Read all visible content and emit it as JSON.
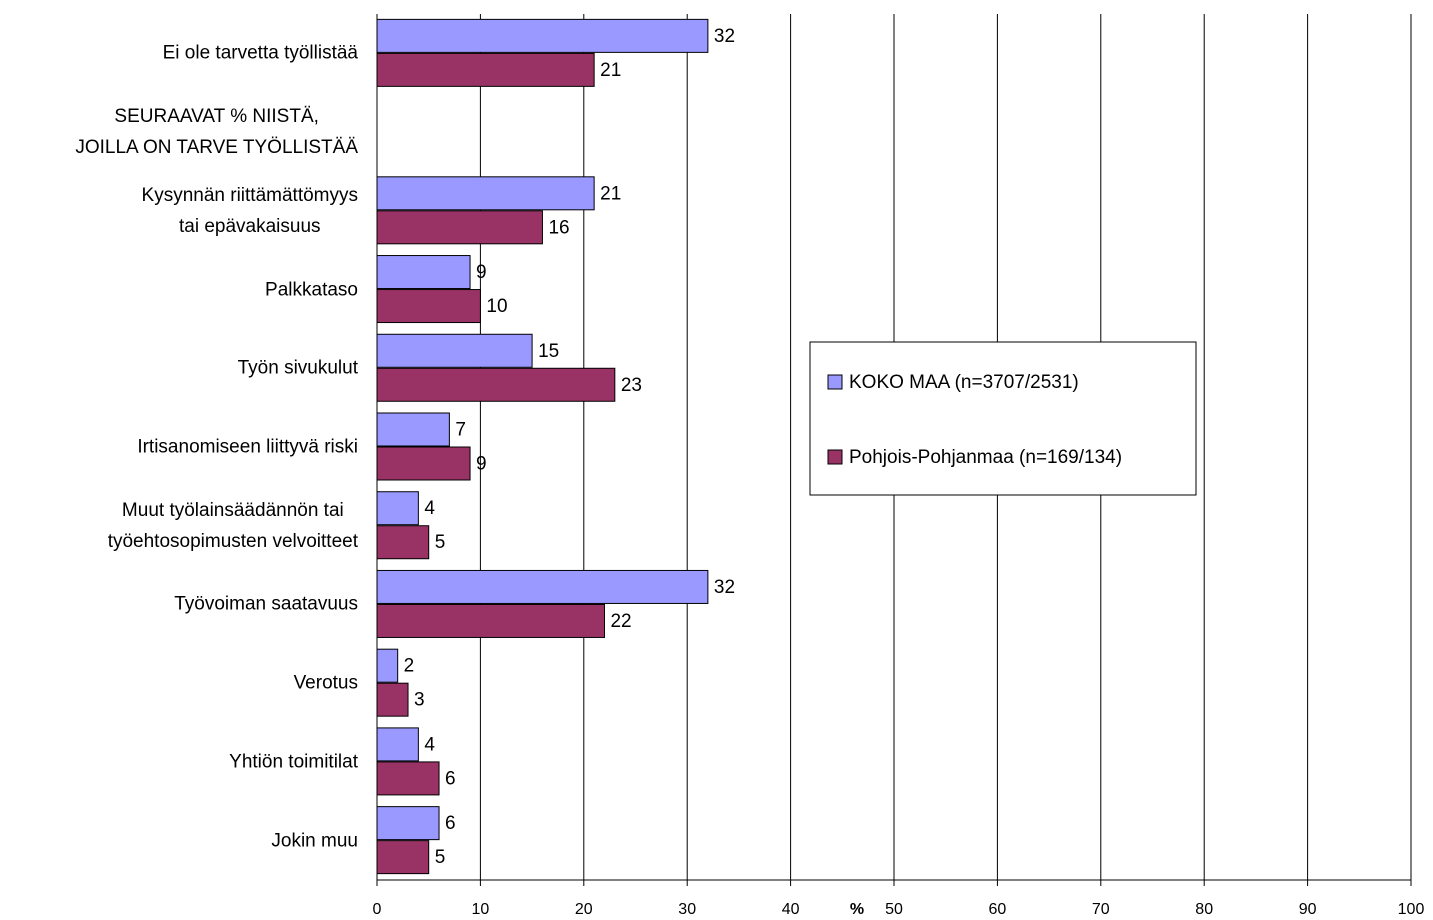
{
  "chart_data": {
    "type": "hbar",
    "categories": [
      "Ei ole tarvetta työllistää",
      "SEURAAVAT % NIISTÄ,\nJOILLA ON TARVE TYÖLLISTÄÄ",
      "Kysynnän riittämättömyys\ntai epävakaisuus",
      "Palkkataso",
      "Työn sivukulut",
      "Irtisanomiseen liittyvä riski",
      "Muut työlainsäädännön tai\ntyöehtosopimusten velvoitteet",
      "Työvoiman saatavuus",
      "Verotus",
      "Yhtiön toimitilat",
      "Jokin muu"
    ],
    "series": [
      {
        "name": "KOKO MAA (n=3707/2531)",
        "color": "#9999ff",
        "values": [
          32,
          null,
          21,
          9,
          15,
          7,
          4,
          32,
          2,
          4,
          6
        ]
      },
      {
        "name": "Pohjois-Pohjanmaa (n=169/134)",
        "color": "#993366",
        "values": [
          21,
          null,
          16,
          10,
          23,
          9,
          5,
          22,
          3,
          6,
          5
        ]
      }
    ],
    "x_label": "%",
    "xlim": [
      0,
      100
    ],
    "xticks": [
      0,
      10,
      20,
      30,
      40,
      50,
      60,
      70,
      80,
      90,
      100
    ],
    "grid": true,
    "legend": "right"
  }
}
